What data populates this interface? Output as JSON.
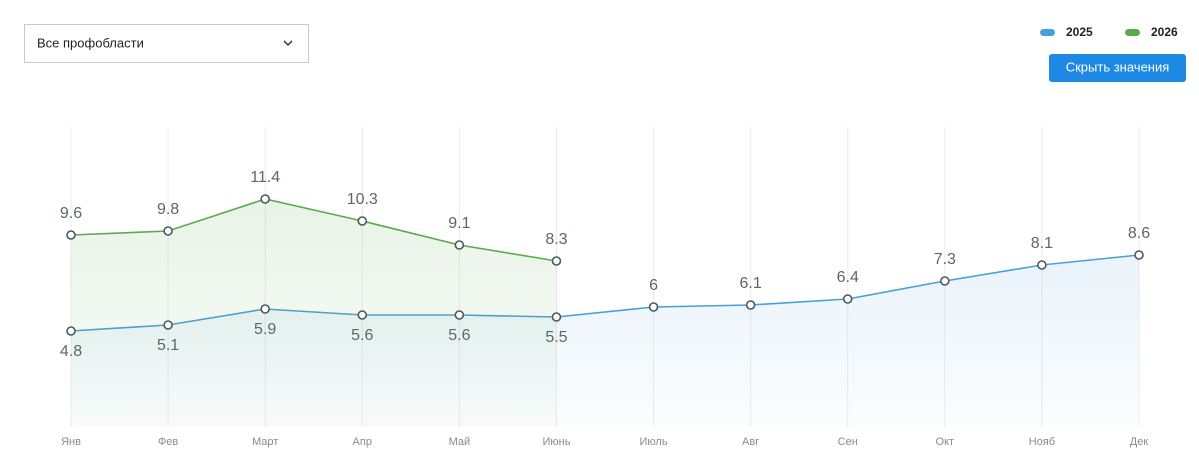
{
  "filter": {
    "label": "Все профобласти"
  },
  "button": {
    "label": "Скрыть значения"
  },
  "chart_data": {
    "type": "line",
    "categories": [
      "Янв",
      "Фев",
      "Март",
      "Апр",
      "Май",
      "Июнь",
      "Июль",
      "Авг",
      "Сен",
      "Окт",
      "Нояб",
      "Дек"
    ],
    "series": [
      {
        "name": "2025",
        "color": "#4a9fd8",
        "values": [
          4.8,
          5.1,
          5.9,
          5.6,
          5.6,
          5.5,
          6,
          6.1,
          6.4,
          7.3,
          8.1,
          8.6
        ]
      },
      {
        "name": "2026",
        "color": "#5aab4e",
        "values": [
          9.6,
          9.8,
          11.4,
          10.3,
          9.1,
          8.3,
          null,
          null,
          null,
          null,
          null,
          null
        ]
      }
    ],
    "ylim": [
      0,
      15
    ],
    "grid": true,
    "legend": "top-right"
  }
}
